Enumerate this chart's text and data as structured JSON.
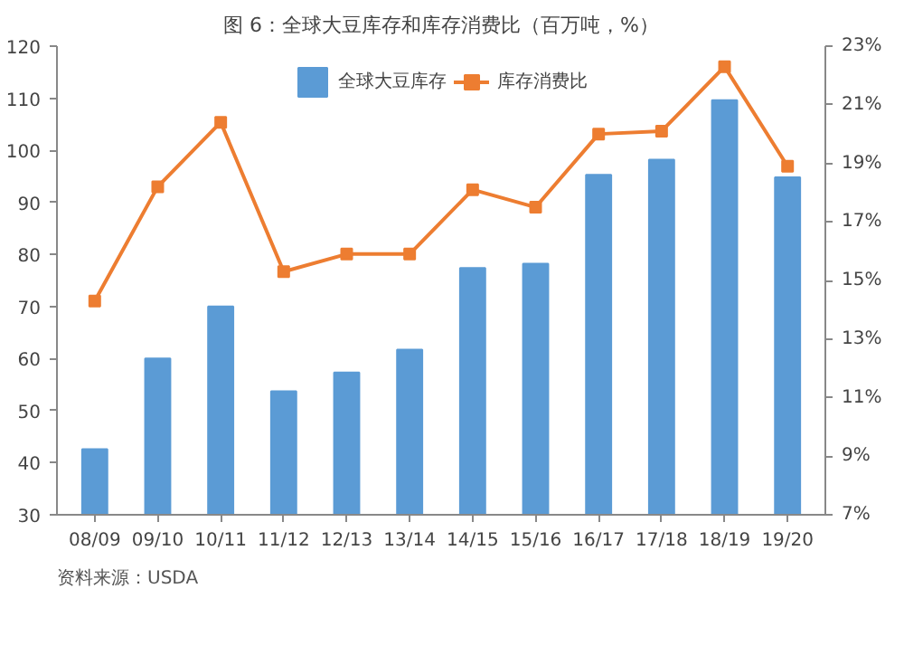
{
  "chart_data": {
    "type": "bar",
    "title": "图 6：全球大豆库存和库存消费比（百万吨，%）",
    "categories": [
      "08/09",
      "09/10",
      "10/11",
      "11/12",
      "12/13",
      "13/14",
      "14/15",
      "15/16",
      "16/17",
      "17/18",
      "18/19",
      "19/20"
    ],
    "series": [
      {
        "name": "全球大豆库存",
        "color": "#5b9bd5",
        "values": [
          42.6,
          60,
          70,
          53.7,
          57.3,
          61.7,
          77.4,
          78.2,
          95.3,
          98.2,
          109.6,
          94.8
        ]
      },
      {
        "name": "库存消费比",
        "type": "line",
        "axis": "y2",
        "color": "#ed7d31",
        "marker": "square",
        "values": [
          14.3,
          18.2,
          20.4,
          15.3,
          15.9,
          15.9,
          18.1,
          17.5,
          20.0,
          20.1,
          22.3,
          18.9
        ]
      }
    ],
    "ylim": [
      30,
      120
    ],
    "yticks": [
      30,
      40,
      50,
      60,
      70,
      80,
      90,
      100,
      110,
      120
    ],
    "y2lim": [
      7,
      23
    ],
    "y2ticks": [
      {
        "value": 7,
        "label": "7%"
      },
      {
        "value": 9,
        "label": "9%"
      },
      {
        "value": 11,
        "label": "11%"
      },
      {
        "value": 13,
        "label": "13%"
      },
      {
        "value": 15,
        "label": "15%"
      },
      {
        "value": 17,
        "label": "17%"
      },
      {
        "value": 19,
        "label": "19%"
      },
      {
        "value": 21,
        "label": "21%"
      },
      {
        "value": 23,
        "label": "23%"
      }
    ],
    "grid": false,
    "legend": "top",
    "annotations": [
      "资料来源：USDA"
    ]
  }
}
